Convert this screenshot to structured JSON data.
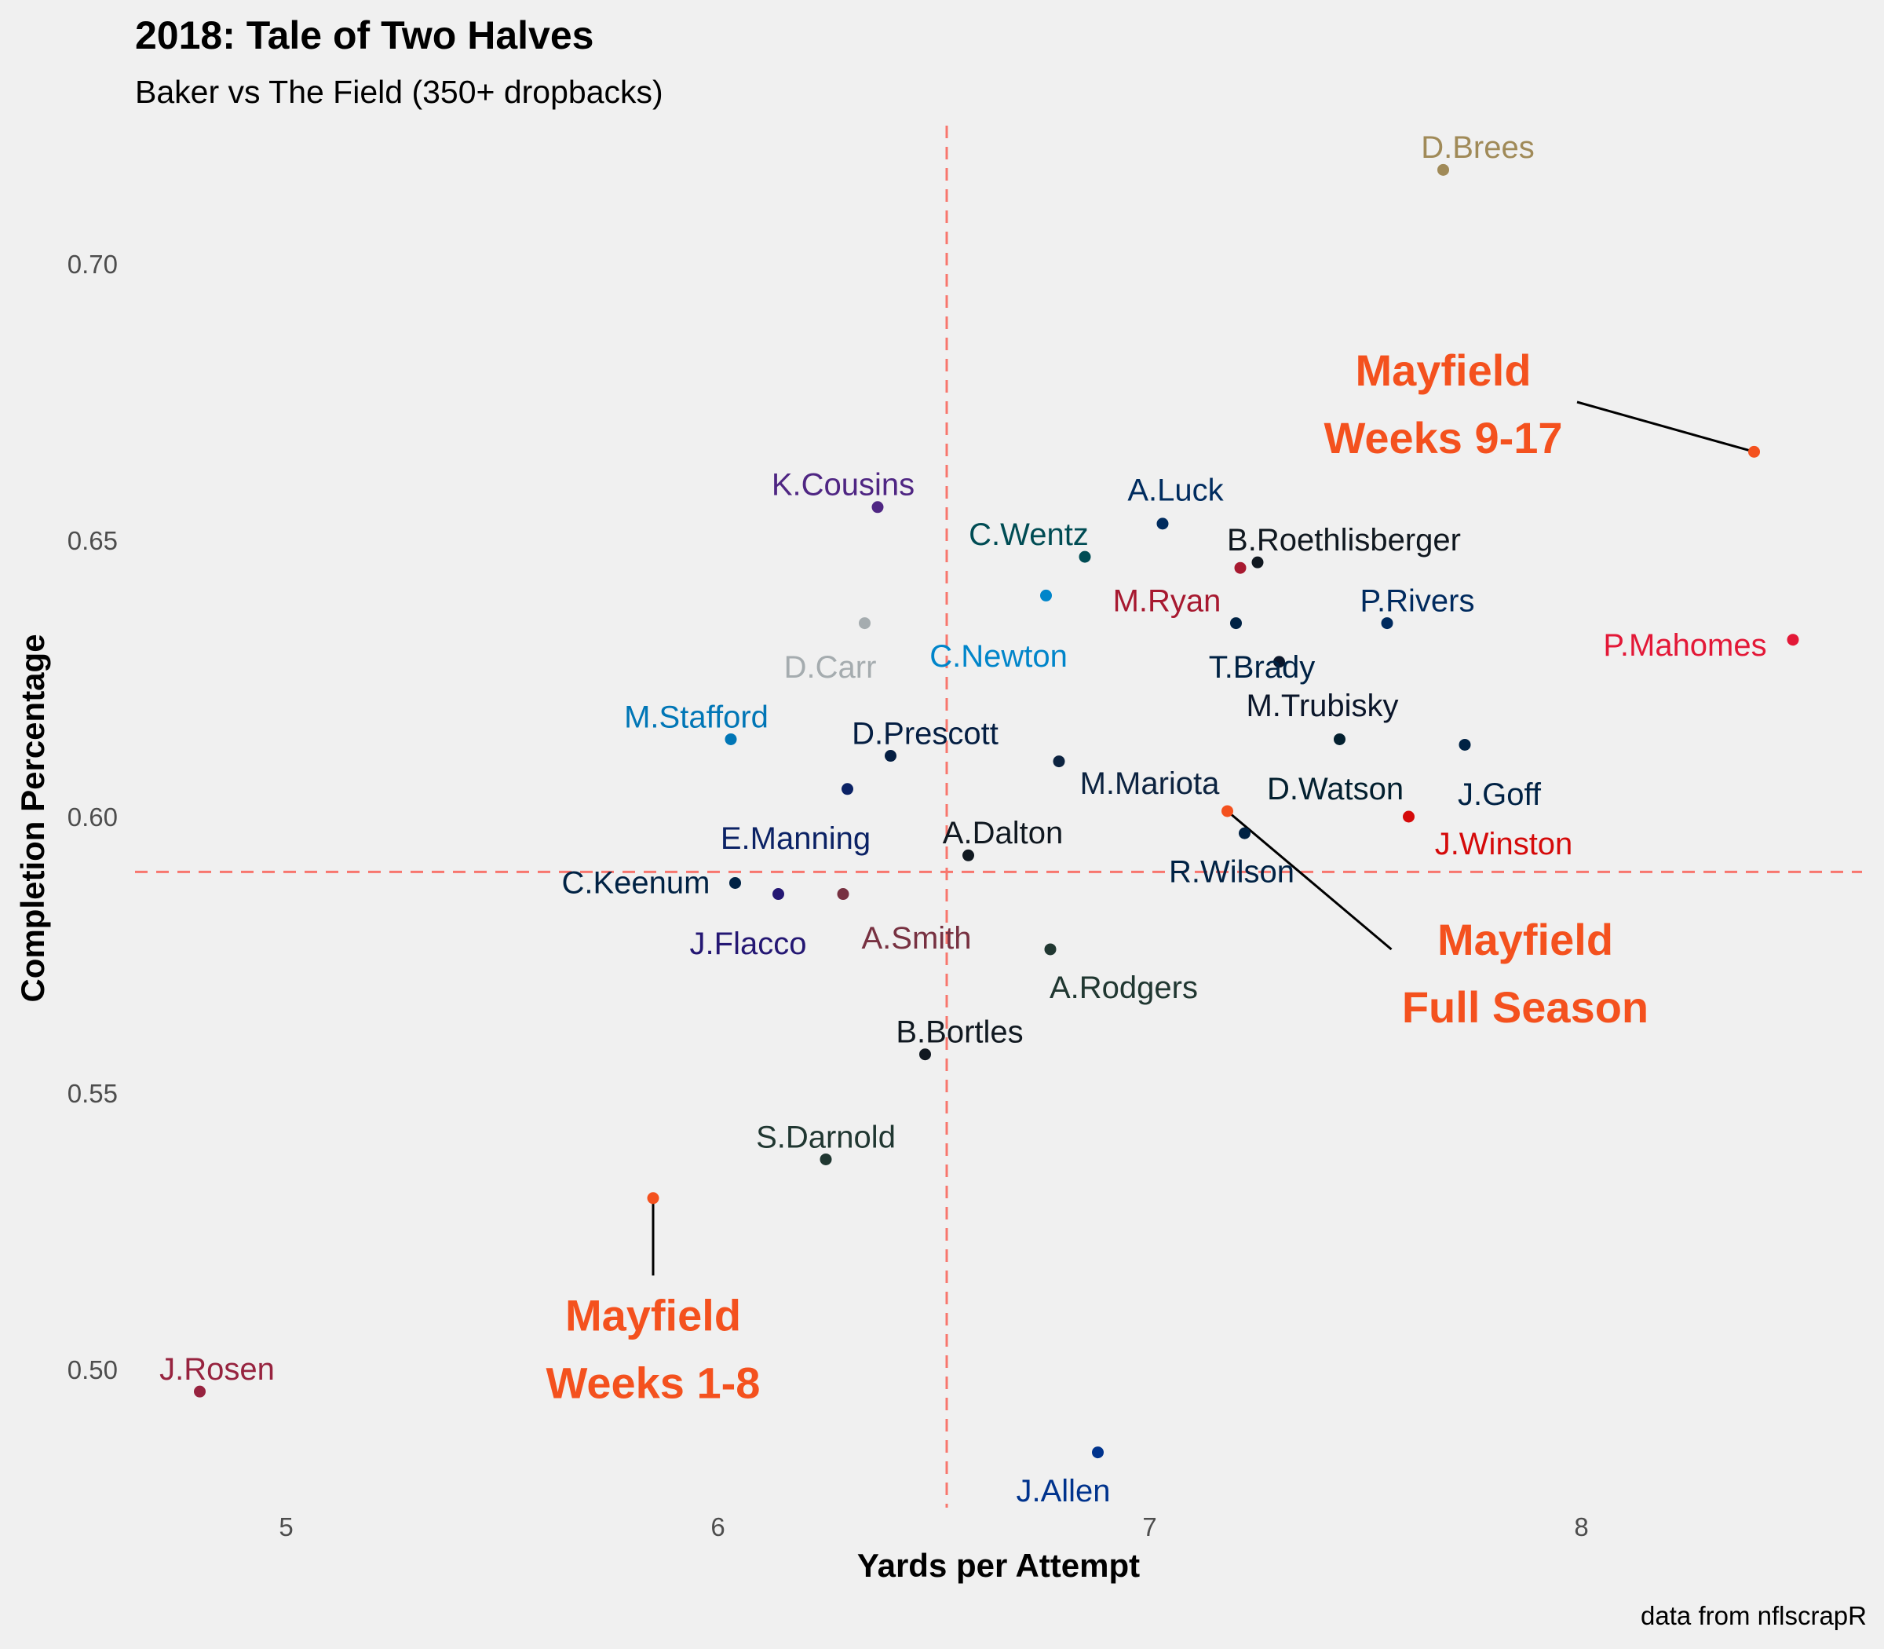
{
  "chart_data": {
    "type": "scatter",
    "title": "2018: Tale of Two Halves",
    "subtitle": "Baker vs The Field (350+ dropbacks)",
    "xlabel": "Yards per Attempt",
    "ylabel": "Completion Percentage",
    "caption": "data from nflscrapR",
    "xlim": [
      4.65,
      8.65
    ],
    "ylim": [
      0.475,
      0.725
    ],
    "xticks": [
      5,
      6,
      7,
      8
    ],
    "yticks": [
      0.5,
      0.55,
      0.6,
      0.65,
      0.7
    ],
    "ytick_labels": [
      "0.50",
      "0.55",
      "0.60",
      "0.65",
      "0.70"
    ],
    "grid": false,
    "reference_lines": {
      "x": 6.53,
      "y": 0.59,
      "color": "#f8766d",
      "style": "dashed"
    },
    "points": [
      {
        "name": "D.Brees",
        "x": 7.68,
        "y": 0.717,
        "color": "#a08a58",
        "label_dx": 0.08,
        "label_dy": 0.004
      },
      {
        "name": "K.Cousins",
        "x": 6.37,
        "y": 0.656,
        "color": "#4f2683",
        "label_dx": -0.08,
        "label_dy": 0.004
      },
      {
        "name": "A.Luck",
        "x": 7.03,
        "y": 0.653,
        "color": "#002c5f",
        "label_dx": 0.03,
        "label_dy": 0.006
      },
      {
        "name": "C.Wentz",
        "x": 6.85,
        "y": 0.647,
        "color": "#004c54",
        "label_dx": -0.13,
        "label_dy": 0.004
      },
      {
        "name": "B.Roethlisberger",
        "x": 7.25,
        "y": 0.646,
        "color": "#101820",
        "label_dx": 0.2,
        "label_dy": 0.004
      },
      {
        "name": "M.Ryan",
        "x": 7.21,
        "y": 0.645,
        "color": "#a71930",
        "label_dx": -0.17,
        "label_dy": -0.006
      },
      {
        "name": "C.Newton",
        "x": 6.76,
        "y": 0.64,
        "color": "#0085ca",
        "label_dx": -0.11,
        "label_dy": -0.011
      },
      {
        "name": "D.Carr",
        "x": 6.34,
        "y": 0.635,
        "color": "#a5acaf",
        "label_dx": -0.08,
        "label_dy": -0.008
      },
      {
        "name": "T.Brady",
        "x": 7.2,
        "y": 0.635,
        "color": "#002244",
        "label_dx": 0.06,
        "label_dy": -0.008
      },
      {
        "name": "P.Rivers",
        "x": 7.55,
        "y": 0.635,
        "color": "#002a5e",
        "label_dx": 0.07,
        "label_dy": 0.004
      },
      {
        "name": "P.Mahomes",
        "x": 8.49,
        "y": 0.632,
        "color": "#e31837",
        "label_dx": -0.25,
        "label_dy": -0.001
      },
      {
        "name": "M.Trubisky",
        "x": 7.3,
        "y": 0.628,
        "color": "#0b162a",
        "label_dx": 0.1,
        "label_dy": -0.008
      },
      {
        "name": "M.Stafford",
        "x": 6.03,
        "y": 0.614,
        "color": "#0076b6",
        "label_dx": -0.08,
        "label_dy": 0.004
      },
      {
        "name": "D.Watson",
        "x": 7.44,
        "y": 0.614,
        "color": "#03202f",
        "label_dx": -0.01,
        "label_dy": -0.009
      },
      {
        "name": "J.Goff",
        "x": 7.73,
        "y": 0.613,
        "color": "#002244",
        "label_dx": 0.08,
        "label_dy": -0.009
      },
      {
        "name": "D.Prescott",
        "x": 6.4,
        "y": 0.611,
        "color": "#041e42",
        "label_dx": 0.08,
        "label_dy": 0.004
      },
      {
        "name": "M.Mariota",
        "x": 6.79,
        "y": 0.61,
        "color": "#0c2340",
        "label_dx": 0.21,
        "label_dy": -0.004
      },
      {
        "name": "E.Manning",
        "x": 6.3,
        "y": 0.605,
        "color": "#0b2265",
        "label_dx": -0.12,
        "label_dy": -0.009
      },
      {
        "name": "J.Winston",
        "x": 7.6,
        "y": 0.6,
        "color": "#d50a0a",
        "label_dx": 0.22,
        "label_dy": -0.005
      },
      {
        "name": "R.Wilson",
        "x": 7.22,
        "y": 0.597,
        "color": "#002244",
        "label_dx": -0.03,
        "label_dy": -0.007
      },
      {
        "name": "A.Dalton",
        "x": 6.58,
        "y": 0.593,
        "color": "#101820",
        "label_dx": 0.08,
        "label_dy": 0.004
      },
      {
        "name": "C.Keenum",
        "x": 6.04,
        "y": 0.588,
        "color": "#002244",
        "label_dx": -0.23,
        "label_dy": 0.0
      },
      {
        "name": "J.Flacco",
        "x": 6.14,
        "y": 0.586,
        "color": "#241773",
        "label_dx": -0.07,
        "label_dy": -0.009
      },
      {
        "name": "A.Smith",
        "x": 6.29,
        "y": 0.586,
        "color": "#773141",
        "label_dx": 0.17,
        "label_dy": -0.008
      },
      {
        "name": "A.Rodgers",
        "x": 6.77,
        "y": 0.576,
        "color": "#203731",
        "label_dx": 0.17,
        "label_dy": -0.007
      },
      {
        "name": "B.Bortles",
        "x": 6.48,
        "y": 0.557,
        "color": "#101820",
        "label_dx": 0.08,
        "label_dy": 0.004
      },
      {
        "name": "S.Darnold",
        "x": 6.25,
        "y": 0.538,
        "color": "#203731",
        "label_dx": 0.0,
        "label_dy": 0.004
      },
      {
        "name": "J.Rosen",
        "x": 4.8,
        "y": 0.496,
        "color": "#97233f",
        "label_dx": 0.04,
        "label_dy": 0.004
      },
      {
        "name": "J.Allen",
        "x": 6.88,
        "y": 0.485,
        "color": "#00338d",
        "label_dx": -0.08,
        "label_dy": -0.007
      }
    ],
    "highlight_points": [
      {
        "id": "mayfield-full",
        "x": 7.18,
        "y": 0.601,
        "color": "#f4511e",
        "line_to": [
          7.56,
          0.576
        ],
        "label_lines": [
          "Mayfield",
          "Full Season"
        ],
        "label_x": 7.87,
        "label_y": 0.575
      },
      {
        "id": "mayfield-9-17",
        "x": 8.4,
        "y": 0.666,
        "color": "#f4511e",
        "line_to": [
          7.99,
          0.675
        ],
        "label_lines": [
          "Mayfield",
          "Weeks 9-17"
        ],
        "label_x": 7.68,
        "label_y": 0.678
      },
      {
        "id": "mayfield-1-8",
        "x": 5.85,
        "y": 0.531,
        "color": "#f4511e",
        "line_to": [
          5.85,
          0.517
        ],
        "label_lines": [
          "Mayfield",
          "Weeks 1-8"
        ],
        "label_x": 5.85,
        "label_y": 0.507
      }
    ]
  }
}
